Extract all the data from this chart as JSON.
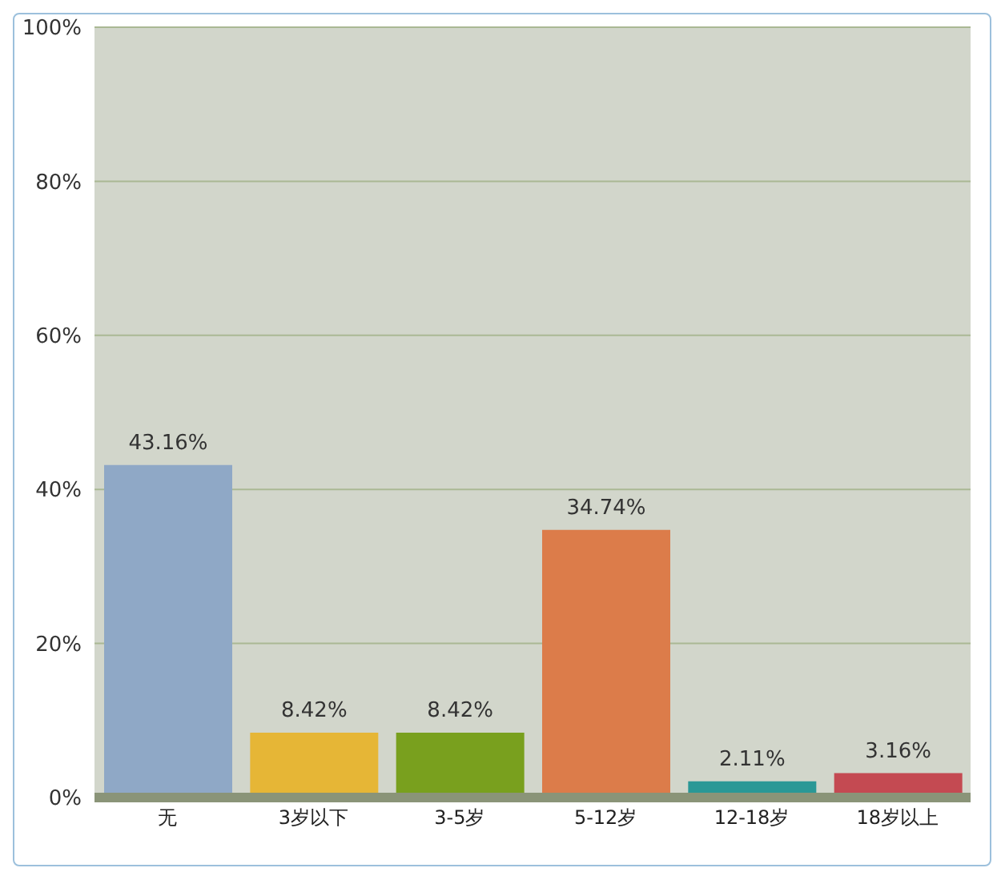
{
  "chart_data": {
    "type": "bar",
    "categories": [
      "无",
      "3岁以下",
      "3-5岁",
      "5-12岁",
      "12-18岁",
      "18岁以上"
    ],
    "values": [
      43.16,
      8.42,
      8.42,
      34.74,
      2.11,
      3.16
    ],
    "colors": [
      "#8fa8c6",
      "#e6b636",
      "#79a01e",
      "#dc7c4a",
      "#2a9896",
      "#c44a52"
    ],
    "value_labels": [
      "43.16%",
      "8.42%",
      "8.42%",
      "34.74%",
      "2.11%",
      "3.16%"
    ],
    "ylim": [
      0,
      100
    ],
    "yticks": [
      {
        "value": 0,
        "label": "0%"
      },
      {
        "value": 20,
        "label": "20%"
      },
      {
        "value": 40,
        "label": "40%"
      },
      {
        "value": 60,
        "label": "60%"
      },
      {
        "value": 80,
        "label": "80%"
      },
      {
        "value": 100,
        "label": "100%"
      }
    ],
    "grid": "y"
  }
}
